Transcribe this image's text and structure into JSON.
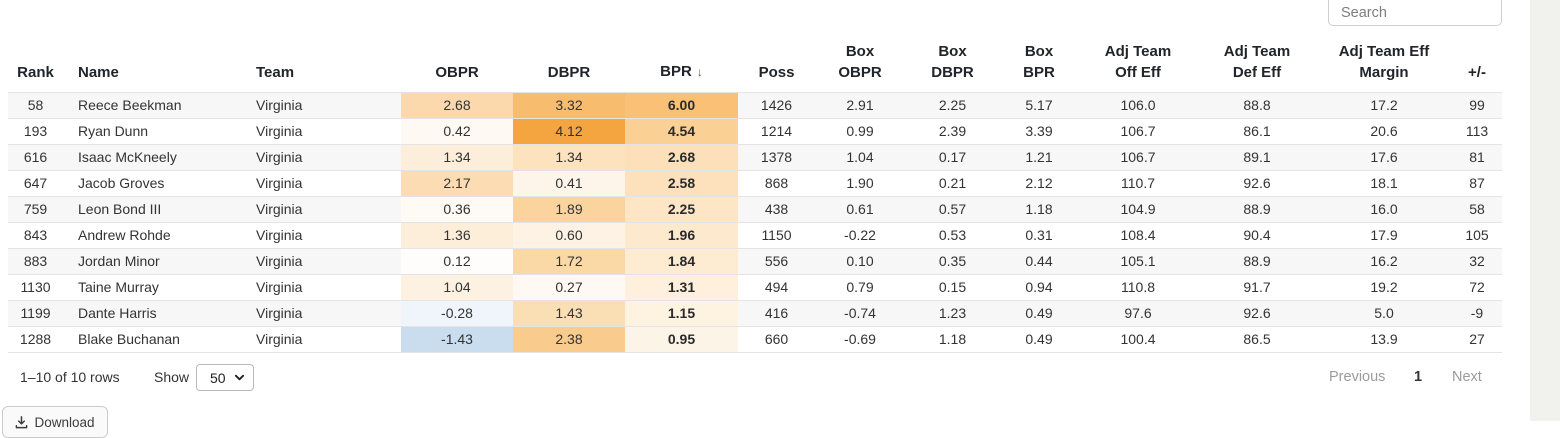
{
  "search": {
    "placeholder": "Search"
  },
  "table": {
    "sort_indicator": "↓",
    "columns": [
      {
        "key": "rank",
        "lines": [
          "Rank"
        ]
      },
      {
        "key": "name",
        "lines": [
          "Name"
        ],
        "align": "left"
      },
      {
        "key": "team",
        "lines": [
          "Team"
        ],
        "align": "left"
      },
      {
        "key": "obpr",
        "lines": [
          "OBPR"
        ]
      },
      {
        "key": "dbpr",
        "lines": [
          "DBPR"
        ]
      },
      {
        "key": "bpr",
        "lines": [
          "BPR"
        ],
        "sorted": "desc"
      },
      {
        "key": "poss",
        "lines": [
          "Poss"
        ]
      },
      {
        "key": "box_obpr",
        "lines": [
          "Box",
          "OBPR"
        ]
      },
      {
        "key": "box_dbpr",
        "lines": [
          "Box",
          "DBPR"
        ]
      },
      {
        "key": "box_bpr",
        "lines": [
          "Box",
          "BPR"
        ]
      },
      {
        "key": "adj_off",
        "lines": [
          "Adj Team",
          "Off Eff"
        ]
      },
      {
        "key": "adj_def",
        "lines": [
          "Adj Team",
          "Def Eff"
        ]
      },
      {
        "key": "adj_margin",
        "lines": [
          "Adj Team Eff",
          "Margin"
        ]
      },
      {
        "key": "plus_minus",
        "lines": [
          "+/-"
        ]
      }
    ],
    "rows": [
      {
        "rank": "58",
        "name": "Reece Beekman",
        "team": "Virginia",
        "obpr": "2.68",
        "dbpr": "3.32",
        "bpr": "6.00",
        "poss": "1426",
        "box_obpr": "2.91",
        "box_dbpr": "2.25",
        "box_bpr": "5.17",
        "adj_off": "106.0",
        "adj_def": "88.8",
        "adj_margin": "17.2",
        "plus_minus": "99",
        "heat": {
          "obpr": "#fbd9ad",
          "dbpr": "#f8bc6e",
          "bpr": "#f9c076"
        }
      },
      {
        "rank": "193",
        "name": "Ryan Dunn",
        "team": "Virginia",
        "obpr": "0.42",
        "dbpr": "4.12",
        "bpr": "4.54",
        "poss": "1214",
        "box_obpr": "0.99",
        "box_dbpr": "2.39",
        "box_bpr": "3.39",
        "adj_off": "106.7",
        "adj_def": "86.1",
        "adj_margin": "20.6",
        "plus_minus": "113",
        "heat": {
          "obpr": "#fefaf3",
          "dbpr": "#f5a53f",
          "bpr": "#fbd095"
        }
      },
      {
        "rank": "616",
        "name": "Isaac McKneely",
        "team": "Virginia",
        "obpr": "1.34",
        "dbpr": "1.34",
        "bpr": "2.68",
        "poss": "1378",
        "box_obpr": "1.04",
        "box_dbpr": "0.17",
        "box_bpr": "1.21",
        "adj_off": "106.7",
        "adj_def": "89.1",
        "adj_margin": "17.6",
        "plus_minus": "81",
        "heat": {
          "obpr": "#fdeedb",
          "dbpr": "#fce2bd",
          "bpr": "#fce0b9"
        }
      },
      {
        "rank": "647",
        "name": "Jacob Groves",
        "team": "Virginia",
        "obpr": "2.17",
        "dbpr": "0.41",
        "bpr": "2.58",
        "poss": "868",
        "box_obpr": "1.90",
        "box_dbpr": "0.21",
        "box_bpr": "2.12",
        "adj_off": "110.7",
        "adj_def": "92.6",
        "adj_margin": "18.1",
        "plus_minus": "87",
        "heat": {
          "obpr": "#fcdcb3",
          "dbpr": "#fef5ea",
          "bpr": "#fce1bc"
        }
      },
      {
        "rank": "759",
        "name": "Leon Bond III",
        "team": "Virginia",
        "obpr": "0.36",
        "dbpr": "1.89",
        "bpr": "2.25",
        "poss": "438",
        "box_obpr": "0.61",
        "box_dbpr": "0.57",
        "box_bpr": "1.18",
        "adj_off": "104.9",
        "adj_def": "88.9",
        "adj_margin": "16.0",
        "plus_minus": "58",
        "heat": {
          "obpr": "#fefaf4",
          "dbpr": "#fad49c",
          "bpr": "#fde5c6"
        }
      },
      {
        "rank": "843",
        "name": "Andrew Rohde",
        "team": "Virginia",
        "obpr": "1.36",
        "dbpr": "0.60",
        "bpr": "1.96",
        "poss": "1150",
        "box_obpr": "-0.22",
        "box_dbpr": "0.53",
        "box_bpr": "0.31",
        "adj_off": "108.4",
        "adj_def": "90.4",
        "adj_margin": "17.9",
        "plus_minus": "105",
        "heat": {
          "obpr": "#fdeeda",
          "dbpr": "#fdf2e3",
          "bpr": "#fde9cd"
        }
      },
      {
        "rank": "883",
        "name": "Jordan Minor",
        "team": "Virginia",
        "obpr": "0.12",
        "dbpr": "1.72",
        "bpr": "1.84",
        "poss": "556",
        "box_obpr": "0.10",
        "box_dbpr": "0.35",
        "box_bpr": "0.44",
        "adj_off": "105.1",
        "adj_def": "88.9",
        "adj_margin": "16.2",
        "plus_minus": "32",
        "heat": {
          "obpr": "#fffdfb",
          "dbpr": "#fbd9a6",
          "bpr": "#fdebd2"
        }
      },
      {
        "rank": "1130",
        "name": "Taine Murray",
        "team": "Virginia",
        "obpr": "1.04",
        "dbpr": "0.27",
        "bpr": "1.31",
        "poss": "494",
        "box_obpr": "0.79",
        "box_dbpr": "0.15",
        "box_bpr": "0.94",
        "adj_off": "110.8",
        "adj_def": "91.7",
        "adj_margin": "19.2",
        "plus_minus": "72",
        "heat": {
          "obpr": "#fdf2e2",
          "dbpr": "#fefaf3",
          "bpr": "#fef0dd"
        }
      },
      {
        "rank": "1199",
        "name": "Dante Harris",
        "team": "Virginia",
        "obpr": "-0.28",
        "dbpr": "1.43",
        "bpr": "1.15",
        "poss": "416",
        "box_obpr": "-0.74",
        "box_dbpr": "1.23",
        "box_bpr": "0.49",
        "adj_off": "97.6",
        "adj_def": "92.6",
        "adj_margin": "5.0",
        "plus_minus": "-9",
        "heat": {
          "obpr": "#eff5fa",
          "dbpr": "#fbdfb4",
          "bpr": "#fef2e0"
        }
      },
      {
        "rank": "1288",
        "name": "Blake Buchanan",
        "team": "Virginia",
        "obpr": "-1.43",
        "dbpr": "2.38",
        "bpr": "0.95",
        "poss": "660",
        "box_obpr": "-0.69",
        "box_dbpr": "1.18",
        "box_bpr": "0.49",
        "adj_off": "100.4",
        "adj_def": "86.5",
        "adj_margin": "13.9",
        "plus_minus": "27",
        "heat": {
          "obpr": "#c9ddee",
          "dbpr": "#f9cb8c",
          "bpr": "#fdf4e8"
        }
      }
    ]
  },
  "footer": {
    "range_text": "1–10 of 10 rows",
    "show_label": "Show",
    "page_size": "50",
    "previous_label": "Previous",
    "page_current": "1",
    "next_label": "Next"
  },
  "download": {
    "label": "Download"
  },
  "colors": {
    "heat_positive_max": "#f5a53f",
    "heat_negative": "#c9ddee",
    "row_stripe": "#f7f7f7",
    "row_border": "#e4e4e4",
    "page_strip": "#f1f2ee"
  }
}
